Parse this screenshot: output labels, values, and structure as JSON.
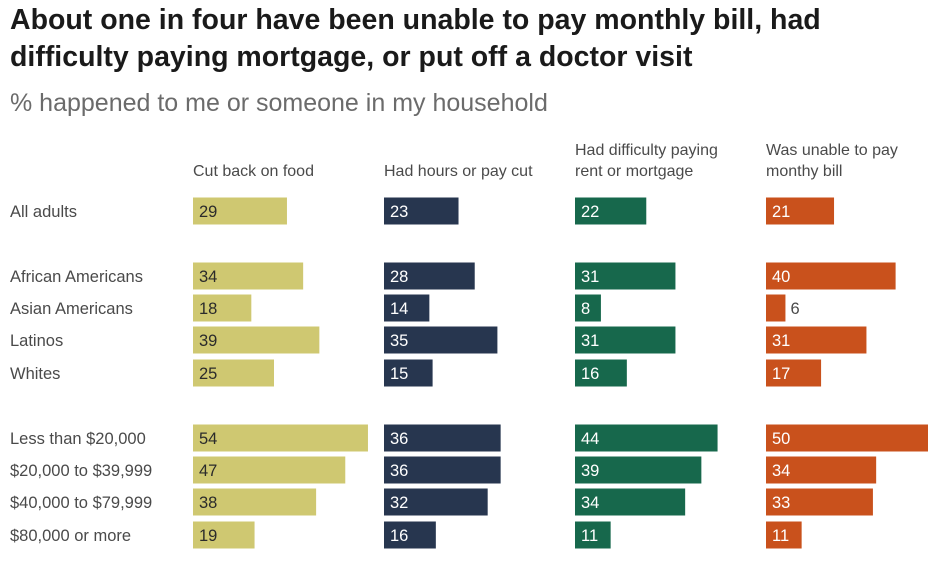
{
  "title": "About one in four have been unable to pay monthly bill, had difficulty paying mortgage, or put off a doctor visit",
  "subtitle": "% happened to me or someone in my household",
  "chart_data": {
    "type": "bar",
    "orientation": "horizontal",
    "layout": "small-multiples",
    "categories": [
      "All adults",
      "African Americans",
      "Asian Americans",
      "Latinos",
      "Whites",
      "Less than $20,000",
      "$20,000 to $39,999",
      "$40,000 to $79,999",
      "$80,000 or more"
    ],
    "groups": [
      [
        0
      ],
      [
        1,
        2,
        3,
        4
      ],
      [
        5,
        6,
        7,
        8
      ]
    ],
    "series": [
      {
        "name": "Cut back on food",
        "color": "#cfc871",
        "label_color": "#2b2b2b",
        "values": [
          29,
          34,
          18,
          39,
          25,
          54,
          47,
          38,
          19
        ]
      },
      {
        "name": "Had hours or pay cut",
        "color": "#27364f",
        "label_color": "#ffffff",
        "values": [
          23,
          28,
          14,
          35,
          15,
          36,
          36,
          32,
          16
        ]
      },
      {
        "name": "Had difficulty paying rent or mortgage",
        "color": "#17684c",
        "label_color": "#ffffff",
        "values": [
          22,
          31,
          8,
          31,
          16,
          44,
          39,
          34,
          11
        ]
      },
      {
        "name": "Was unable to pay monthy bill",
        "color": "#c9511c",
        "label_color": "#ffffff",
        "values": [
          21,
          40,
          6,
          31,
          17,
          50,
          34,
          33,
          11
        ]
      }
    ],
    "xlim": [
      0,
      54
    ],
    "grid": false,
    "legend": "none"
  }
}
